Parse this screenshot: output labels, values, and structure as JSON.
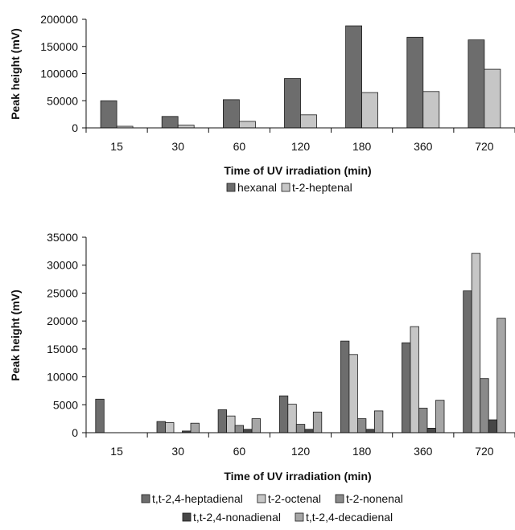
{
  "chart_data": [
    {
      "type": "bar",
      "categories": [
        "15",
        "30",
        "60",
        "120",
        "180",
        "360",
        "720"
      ],
      "series": [
        {
          "name": "hexanal",
          "color": "#6d6d6d",
          "values": [
            50000,
            21000,
            52000,
            91000,
            188000,
            167000,
            162000
          ]
        },
        {
          "name": "t-2-heptenal",
          "color": "#c6c6c6",
          "values": [
            3000,
            5000,
            12000,
            24000,
            65000,
            67000,
            108000
          ]
        }
      ],
      "xlabel": "Time of UV irradiation (min)",
      "ylabel": "Peak height (mV)",
      "ylim": [
        0,
        200000
      ],
      "yticks": [
        "0",
        "50000",
        "100000",
        "150000",
        "200000"
      ],
      "grid": false,
      "legend": "bottom"
    },
    {
      "type": "bar",
      "categories": [
        "15",
        "30",
        "60",
        "120",
        "180",
        "360",
        "720"
      ],
      "series": [
        {
          "name": "t,t-2,4-heptadienal",
          "color": "#6d6d6d",
          "values": [
            6000,
            2000,
            4100,
            6600,
            16400,
            16100,
            25400
          ]
        },
        {
          "name": "t-2-octenal",
          "color": "#c6c6c6",
          "values": [
            0,
            1800,
            3000,
            5100,
            14000,
            19000,
            32100
          ]
        },
        {
          "name": "t-2-nonenal",
          "color": "#8a8a8a",
          "values": [
            0,
            0,
            1300,
            1500,
            2500,
            4400,
            9700
          ]
        },
        {
          "name": "t,t-2,4-nonadienal",
          "color": "#474747",
          "values": [
            0,
            300,
            600,
            600,
            600,
            800,
            2300
          ]
        },
        {
          "name": "t,t-2,4-decadienal",
          "color": "#a6a6a6",
          "values": [
            0,
            1700,
            2500,
            3700,
            3900,
            5800,
            20500
          ]
        }
      ],
      "xlabel": "Time of UV irradiation (min)",
      "ylabel": "Peak height (mV)",
      "ylim": [
        0,
        35000
      ],
      "yticks": [
        "0",
        "5000",
        "10000",
        "15000",
        "20000",
        "25000",
        "30000",
        "35000"
      ],
      "grid": false,
      "legend": "bottom"
    }
  ]
}
